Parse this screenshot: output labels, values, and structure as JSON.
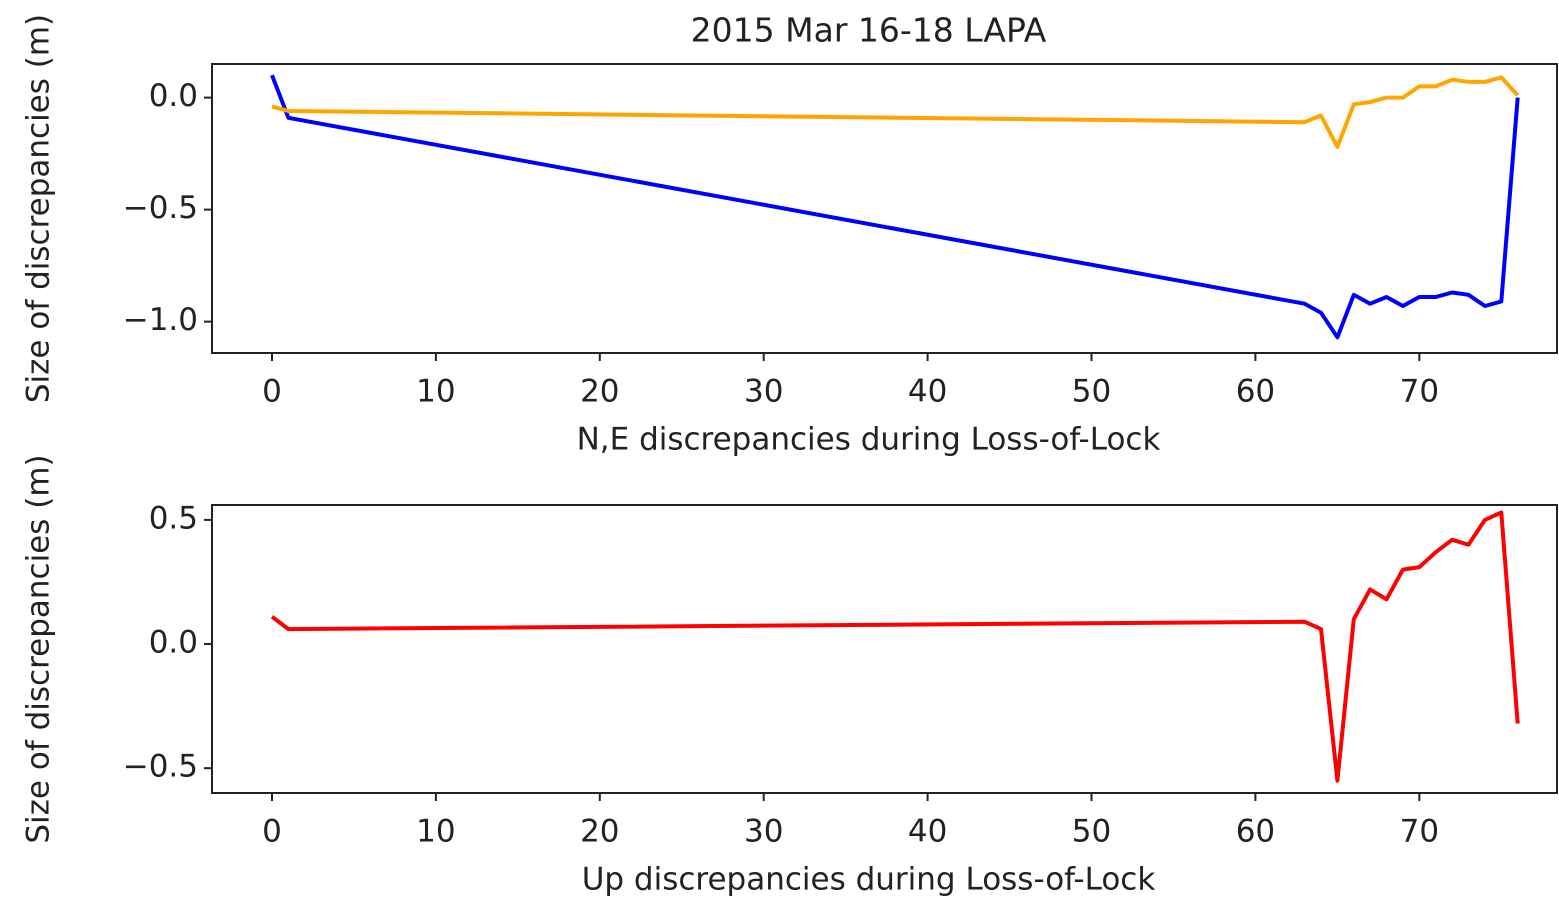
{
  "chart_data": [
    {
      "type": "line",
      "title": "2015 Mar 16-18 LAPA",
      "x_label": "N,E discrepancies during Loss-of-Lock",
      "y_label": "Size of discrepancies (m)",
      "x": [
        0,
        1,
        63,
        64,
        65,
        66,
        67,
        68,
        69,
        70,
        71,
        72,
        73,
        74,
        75,
        76
      ],
      "series": [
        {
          "color": "#0000ff",
          "values": [
            0.1,
            -0.09,
            -0.92,
            -0.96,
            -1.07,
            -0.88,
            -0.92,
            -0.89,
            -0.93,
            -0.89,
            -0.89,
            -0.87,
            -0.88,
            -0.93,
            -0.91,
            0.0
          ]
        },
        {
          "color": "#ffa500",
          "values": [
            -0.04,
            -0.06,
            -0.11,
            -0.08,
            -0.22,
            -0.03,
            -0.02,
            0.0,
            0.0,
            0.05,
            0.05,
            0.08,
            0.07,
            0.07,
            0.09,
            0.01
          ]
        }
      ],
      "xlim": [
        -3.66,
        78.4
      ],
      "xticks": [
        0,
        10,
        20,
        30,
        40,
        50,
        60,
        70
      ],
      "ylim": [
        -1.14,
        0.15
      ],
      "yticks": [
        {
          "value": -1.0,
          "label": "−1.0"
        },
        {
          "value": -0.5,
          "label": "−0.5"
        },
        {
          "value": 0.0,
          "label": "0.0"
        }
      ]
    },
    {
      "type": "line",
      "x_label": "Up discrepancies during Loss-of-Lock",
      "y_label": "Size of discrepancies (m)",
      "x": [
        0,
        1,
        63,
        64,
        65,
        66,
        67,
        68,
        69,
        70,
        71,
        72,
        73,
        74,
        75,
        76
      ],
      "series": [
        {
          "color": "#ff0000",
          "values": [
            0.11,
            0.06,
            0.09,
            0.06,
            -0.55,
            0.1,
            0.22,
            0.18,
            0.3,
            0.31,
            0.37,
            0.42,
            0.4,
            0.5,
            0.53,
            -0.32
          ]
        }
      ],
      "xlim": [
        -3.66,
        78.4
      ],
      "xticks": [
        0,
        10,
        20,
        30,
        40,
        50,
        60,
        70
      ],
      "ylim": [
        -0.6,
        0.56
      ],
      "yticks": [
        {
          "value": -0.5,
          "label": "−0.5"
        },
        {
          "value": 0.0,
          "label": "0.0"
        },
        {
          "value": 0.5,
          "label": "0.5"
        }
      ]
    }
  ]
}
